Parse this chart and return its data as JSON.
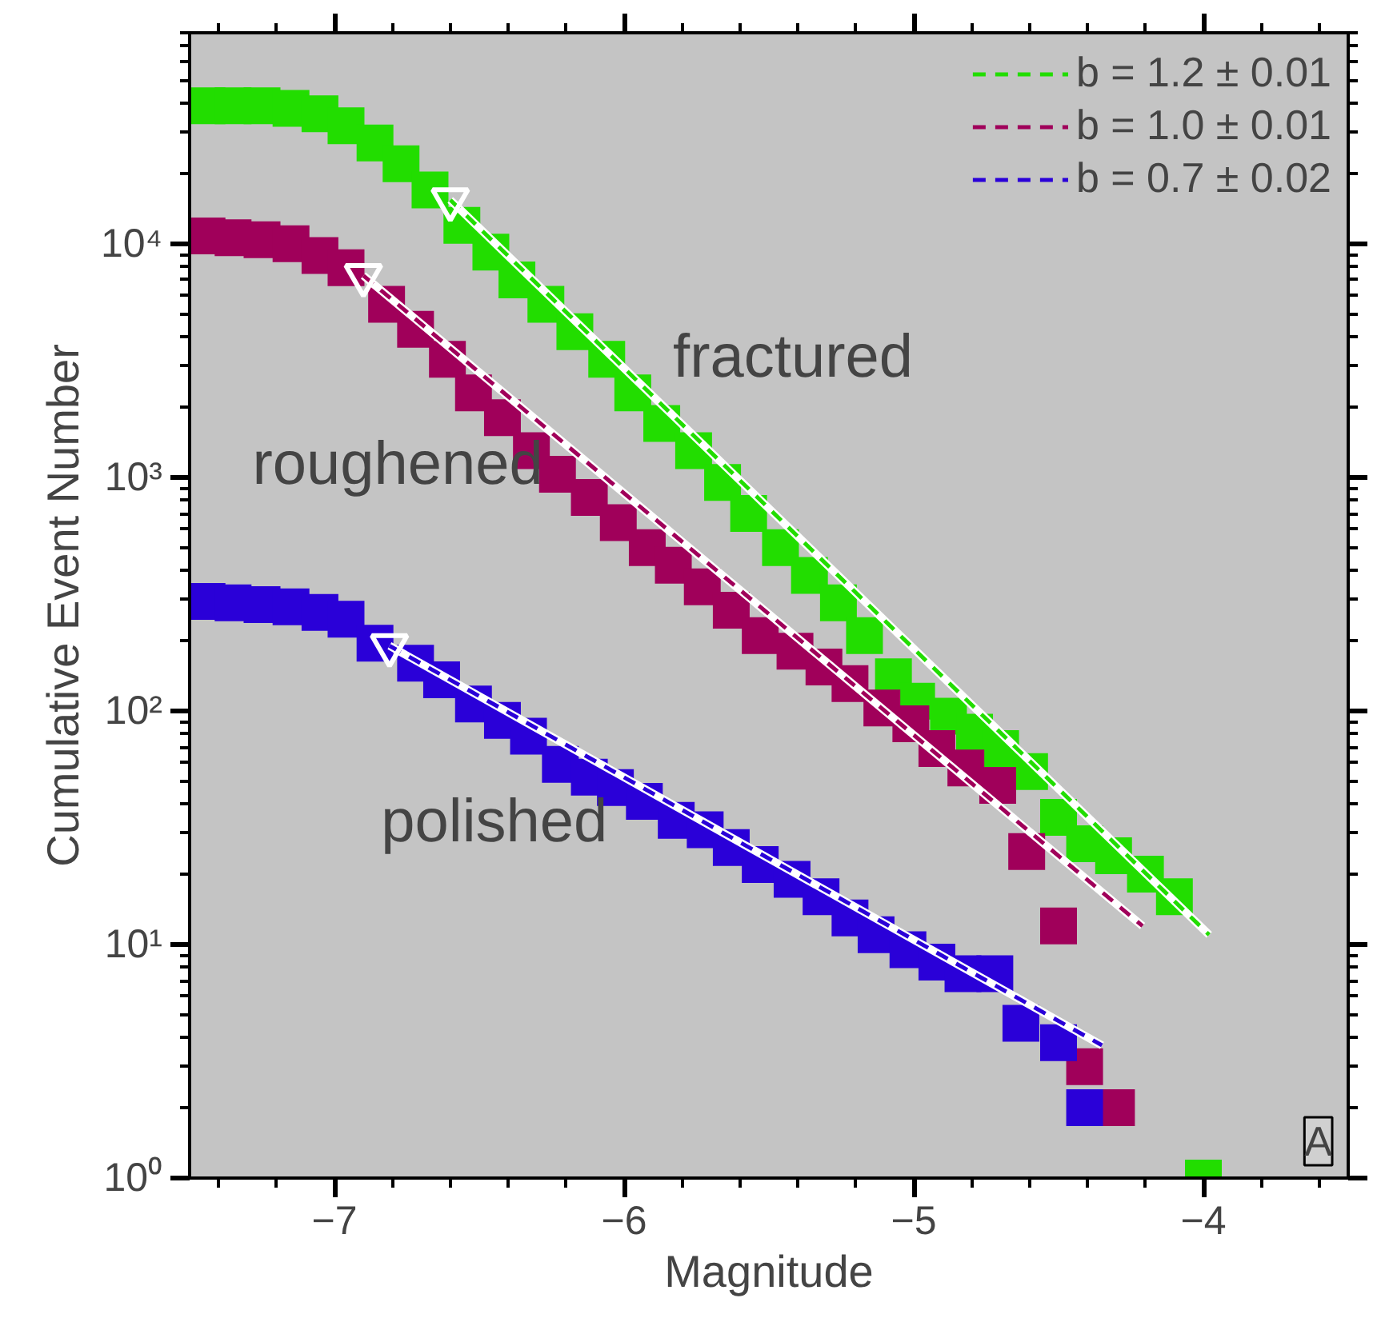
{
  "chart_data": {
    "type": "scatter",
    "xlabel": "Magnitude",
    "ylabel": "Cumulative Event Number",
    "log": "y",
    "legend": "top right",
    "xlim": [
      -7.5,
      -3.5
    ],
    "ylim": [
      1,
      80000
    ],
    "xticks": [
      {
        "value": -7.4,
        "label": null
      },
      {
        "value": -7.2,
        "label": null
      },
      -7,
      {
        "value": -6.8,
        "label": null
      },
      {
        "value": -6.6,
        "label": null
      },
      {
        "value": -6.4,
        "label": null
      },
      {
        "value": -6.2,
        "label": null
      },
      -6,
      {
        "value": -5.8,
        "label": null
      },
      {
        "value": -5.6,
        "label": null
      },
      {
        "value": -5.4,
        "label": null
      },
      {
        "value": -5.2,
        "label": null
      },
      -5,
      {
        "value": -4.8,
        "label": null
      },
      {
        "value": -4.6,
        "label": null
      },
      {
        "value": -4.4,
        "label": null
      },
      {
        "value": -4.2,
        "label": null
      },
      -4,
      {
        "value": -3.8,
        "label": null
      },
      {
        "value": -3.6,
        "label": null
      }
    ],
    "yticks": [
      {
        "value": 1,
        "label": "10⁰"
      },
      {
        "value": 10,
        "label": "10¹"
      },
      {
        "value": 100,
        "label": "10²"
      },
      {
        "value": 1000,
        "label": "10³"
      },
      {
        "value": 10000,
        "label": "10⁴"
      }
    ],
    "series": [
      {
        "name": "fractured",
        "marker": "square",
        "color": "#22dd00",
        "x": [
          -7.44,
          -7.35,
          -7.25,
          -7.15,
          -7.05,
          -6.96,
          -6.86,
          -6.77,
          -6.67,
          -6.56,
          -6.46,
          -6.37,
          -6.27,
          -6.17,
          -6.06,
          -5.97,
          -5.87,
          -5.76,
          -5.66,
          -5.57,
          -5.46,
          -5.36,
          -5.26,
          -5.17,
          -5.07,
          -4.99,
          -4.88,
          -4.79,
          -4.7,
          -4.6,
          -4.5,
          -4.41,
          -4.31,
          -4.2,
          -4.1,
          -4.0
        ],
        "values": [
          39000,
          39000,
          39000,
          38000,
          36000,
          32000,
          27000,
          22000,
          17000,
          12000,
          9200,
          7000,
          5500,
          4200,
          3200,
          2300,
          1700,
          1300,
          950,
          700,
          500,
          380,
          290,
          210,
          140,
          110,
          95,
          81,
          69,
          55,
          35,
          27,
          24,
          20,
          16,
          1
        ]
      },
      {
        "name": "roughened",
        "marker": "square",
        "color": "#a0005a",
        "x": [
          -7.44,
          -7.35,
          -7.25,
          -7.15,
          -7.05,
          -6.96,
          -6.82,
          -6.72,
          -6.61,
          -6.52,
          -6.42,
          -6.32,
          -6.23,
          -6.12,
          -6.02,
          -5.92,
          -5.83,
          -5.73,
          -5.63,
          -5.53,
          -5.41,
          -5.31,
          -5.22,
          -5.11,
          -5.01,
          -4.92,
          -4.82,
          -4.71,
          -4.61,
          -4.5,
          -4.41,
          -4.3
        ],
        "values": [
          10800,
          10600,
          10400,
          10000,
          8900,
          7900,
          5500,
          4300,
          3200,
          2300,
          1800,
          1300,
          1030,
          820,
          640,
          500,
          420,
          340,
          270,
          210,
          180,
          154,
          131,
          103,
          88,
          69,
          57,
          48,
          25,
          12,
          3,
          2
        ]
      },
      {
        "name": "polished",
        "marker": "square",
        "color": "#2a00d8",
        "x": [
          -7.44,
          -7.35,
          -7.25,
          -7.15,
          -7.05,
          -6.96,
          -6.86,
          -6.72,
          -6.63,
          -6.52,
          -6.42,
          -6.33,
          -6.22,
          -6.12,
          -6.03,
          -5.93,
          -5.82,
          -5.72,
          -5.63,
          -5.53,
          -5.42,
          -5.32,
          -5.22,
          -5.13,
          -5.02,
          -4.92,
          -4.83,
          -4.72,
          -4.63,
          -4.5,
          -4.41
        ],
        "values": [
          294,
          290,
          285,
          279,
          264,
          247,
          195,
          160,
          136,
          107,
          91,
          78,
          59,
          52,
          47,
          41,
          34,
          31,
          26,
          22,
          19,
          16,
          13,
          11,
          9.5,
          8.4,
          7.5,
          7.5,
          4.6,
          3.8,
          2
        ]
      },
      {
        "type": "line",
        "line_style": "dashed",
        "name": "b = 1.2 ± 0.01",
        "color": "#22dd00",
        "x": [
          -6.6,
          -3.98
        ],
        "values": [
          15400,
          11
        ]
      },
      {
        "type": "line",
        "line_style": "dashed",
        "name": "b = 1.0 ± 0.01",
        "color": "#a0005a",
        "x": [
          -6.9,
          -4.21
        ],
        "values": [
          7300,
          12
        ]
      },
      {
        "type": "line",
        "line_style": "dashed",
        "name": "b = 0.7 ± 0.02",
        "color": "#2a00d8",
        "x": [
          -6.81,
          -4.35
        ],
        "values": [
          190,
          3.7
        ]
      },
      {
        "marker": "triangle",
        "color": "#ffffff",
        "x": [
          -6.6,
          -6.9,
          -6.81
        ],
        "values": [
          15400,
          7300,
          190
        ]
      }
    ],
    "annotations": [
      "A"
    ]
  }
}
